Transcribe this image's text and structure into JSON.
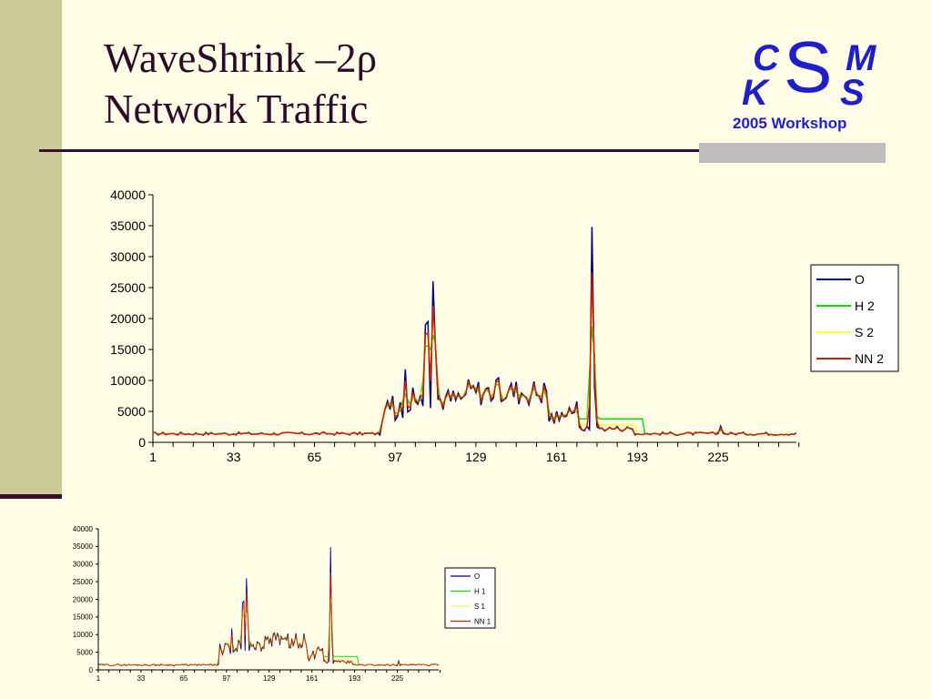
{
  "slide": {
    "title_line1": "WaveShrink –2ρ",
    "title_line2": "Network Traffic"
  },
  "logo": {
    "letters": [
      "C",
      "S",
      "M",
      "K",
      "S"
    ],
    "caption": "2005 Workshop",
    "color": "#1E1ECF"
  },
  "chart_data": [
    {
      "type": "line",
      "ylim": [
        0,
        40000
      ],
      "yticks": [
        0,
        5000,
        10000,
        15000,
        20000,
        25000,
        30000,
        35000,
        40000
      ],
      "xlim": [
        1,
        256
      ],
      "xticks": [
        1,
        33,
        65,
        97,
        129,
        161,
        193,
        225
      ],
      "legend_position": "right",
      "series": [
        {
          "name": "O",
          "color": "#00007F"
        },
        {
          "name": "H 2",
          "color": "#00E000"
        },
        {
          "name": "S 2",
          "color": "#FFFF33"
        },
        {
          "name": "NN 2",
          "color": "#CC2200"
        }
      ]
    },
    {
      "type": "line",
      "ylim": [
        0,
        40000
      ],
      "yticks": [
        0,
        5000,
        10000,
        15000,
        20000,
        25000,
        30000,
        35000,
        40000
      ],
      "xlim": [
        1,
        256
      ],
      "xticks": [
        1,
        33,
        65,
        97,
        129,
        161,
        193,
        225
      ],
      "legend_position": "right",
      "series": [
        {
          "name": "O",
          "color": "#00007F"
        },
        {
          "name": "H 1",
          "color": "#00E000"
        },
        {
          "name": "S 1",
          "color": "#FFFF33"
        },
        {
          "name": "NN 1",
          "color": "#CC2200"
        }
      ]
    }
  ]
}
